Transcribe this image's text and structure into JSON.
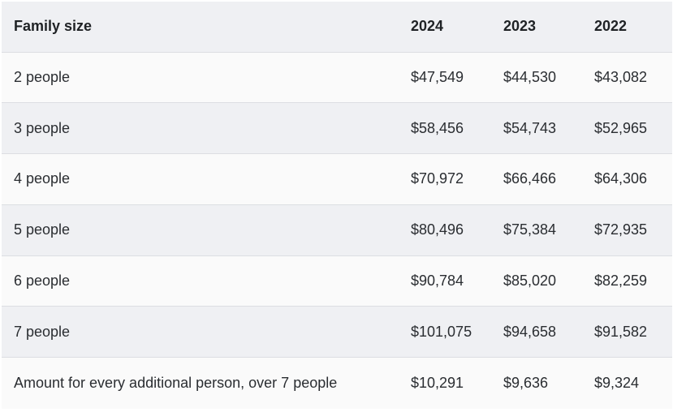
{
  "table": {
    "headers": [
      "Family size",
      "2024",
      "2023",
      "2022"
    ],
    "rows": [
      [
        "2 people",
        "$47,549",
        "$44,530",
        "$43,082"
      ],
      [
        "3 people",
        "$58,456",
        "$54,743",
        "$52,965"
      ],
      [
        "4 people",
        "$70,972",
        "$66,466",
        "$64,306"
      ],
      [
        "5 people",
        "$80,496",
        "$75,384",
        "$72,935"
      ],
      [
        "6 people",
        "$90,784",
        "$85,020",
        "$82,259"
      ],
      [
        "7 people",
        "$101,075",
        "$94,658",
        "$91,582"
      ],
      [
        "Amount for every additional person, over 7 people",
        "$10,291",
        "$9,636",
        "$9,324"
      ]
    ]
  },
  "colors": {
    "header_bg": "#eff0f3",
    "row_light": "#fafafa",
    "row_shaded": "#eff0f3",
    "border": "#dcdee2"
  }
}
